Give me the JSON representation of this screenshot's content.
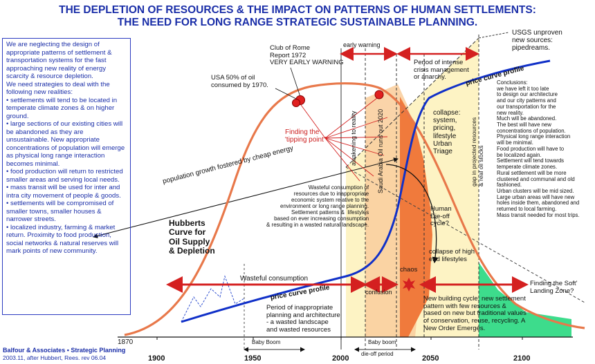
{
  "title": {
    "line1": "THE DEPLETION OF RESOURCES & THE IMPACT ON PATTERNS OF HUMAN SETTLEMENTS:",
    "line2": "THE NEED FOR LONG RANGE STRATEGIC SUSTAINABLE PLANNING."
  },
  "left_panel": {
    "intro": "We are neglecting the design of appropriate patterns of settlement & transportation systems for the fast approaching new reality of energy scarcity & resource depletion.",
    "strategies_heading": "We need strategies to deal with the following new realities:",
    "bullets": [
      "• settlements will tend to be located in temperate climate zones & on higher ground.",
      "• large sections of our existing cities will be abandoned as they are unsustainable. New appropriate concentrations of population will emerge as physical long range interaction becomes minimal.",
      "• food production will return to restricted smaller areas and serving local needs.",
      "• mass transit will be used for inter and intra city movement of people & goods.",
      "• settlements will be compromised of smaller towns, smaller houses & narrower streets.",
      "• localized industry, farming & market return. Proximity to food production, social networks & natural reserves will mark points of new community."
    ]
  },
  "credits": {
    "line1": "Balfour & Associates • Strategic Planning",
    "line2": "2003.11, after Hubbert, Rees. rev 06.04"
  },
  "x_axis": {
    "start_label": "1870",
    "ticks": [
      "1900",
      "1950",
      "2000",
      "2050",
      "2100"
    ],
    "baby_boom": "Baby Boom",
    "baby_boom_dieoff_1": "Baby boom",
    "baby_boom_dieoff_2": "die-off period"
  },
  "labels": {
    "club_of_rome": "Club of Rome\nReport 1972\nVERY EARLY WARNING",
    "usa_oil": "USA 50% of oil\nconsumed by 1970.",
    "early_warning": "early warning",
    "period_intense": "Period of intense\ncrisis management\nor anarchy.",
    "usgs": "USGS unproven\nnew sources:\npipedreams.",
    "price_curve_top": "price curve profile",
    "price_curve_bottom": "price curve profile",
    "awakening": "awakening to reality",
    "saudi": "Saudi Arabia Oil runs out 2020",
    "gap": "gap in projected resources\n& real oil stocks",
    "tipping": "Finding the\n'tipping point\"",
    "collapse": "collapse:\nsystem,\npricing,\nlifestyle\nUrban\nTriage",
    "population_growth": "population growth fostered by cheap energy",
    "wasteful_text": "Wasteful consumption of\nresources due to inappropriate\neconomic system relative to the\nenvironment or long range planning.\nSettlement patterns &  lifestyles\nbased on ever increasing consumption\n& resulting in a wasted natural landscape.",
    "hubbert": "Hubberts\nCurve for\nOil Supply\n& Depletion",
    "human_dieoff": "Human\nDie-off\ncycle?",
    "chaos": "chaos",
    "collapse_high": "collapse of high\nend lifestyles",
    "wasteful_consumption": "Wasteful consumption",
    "confusion": "confusion",
    "finding_soft": "Finding the Soft'\nLanding Zone?",
    "period_inappropriate": "Period of inappropriate\nplanning and architecture\n- a wasted landscape\nand wasted resources",
    "new_building": "New building cycle, new settlement\npattern with few resources &\nbased on new but traditional values\nof conservation, reuse, recycling. A\nNew Order Emerges.",
    "conclusions": "Conclusions:\nwe have left it too late\nto design our architecture\nand our city patterns and\nour transportation for the\nnew reality.\nMuch will be abandoned.\nThe best will have new\nconcentrations of population.\nPhysical long range interaction\nwill be minimal.\nFood production will have to\nbe localized again.\nSettlement will tend towards\ntemperate climate zones.\nRural settlement will be more\nclustered and communal and old\nfashioned.\nUrban clusters will be mid sized.\nLarge urban areas will have new\nholes inside them, abandoned and\nreturned to local farming.\nMass transit needed for most trips."
  },
  "colors": {
    "title_blue": "#1a2ea8",
    "hubbert_orange": "#e8784a",
    "price_blue": "#1030c8",
    "arrow_red": "#d42020",
    "crisis_yellow": "#fdf3c4",
    "collapse_orange": "#f07a3c",
    "awakening_tan": "#f9cfa0",
    "landing_green": "#3ddc8c"
  }
}
